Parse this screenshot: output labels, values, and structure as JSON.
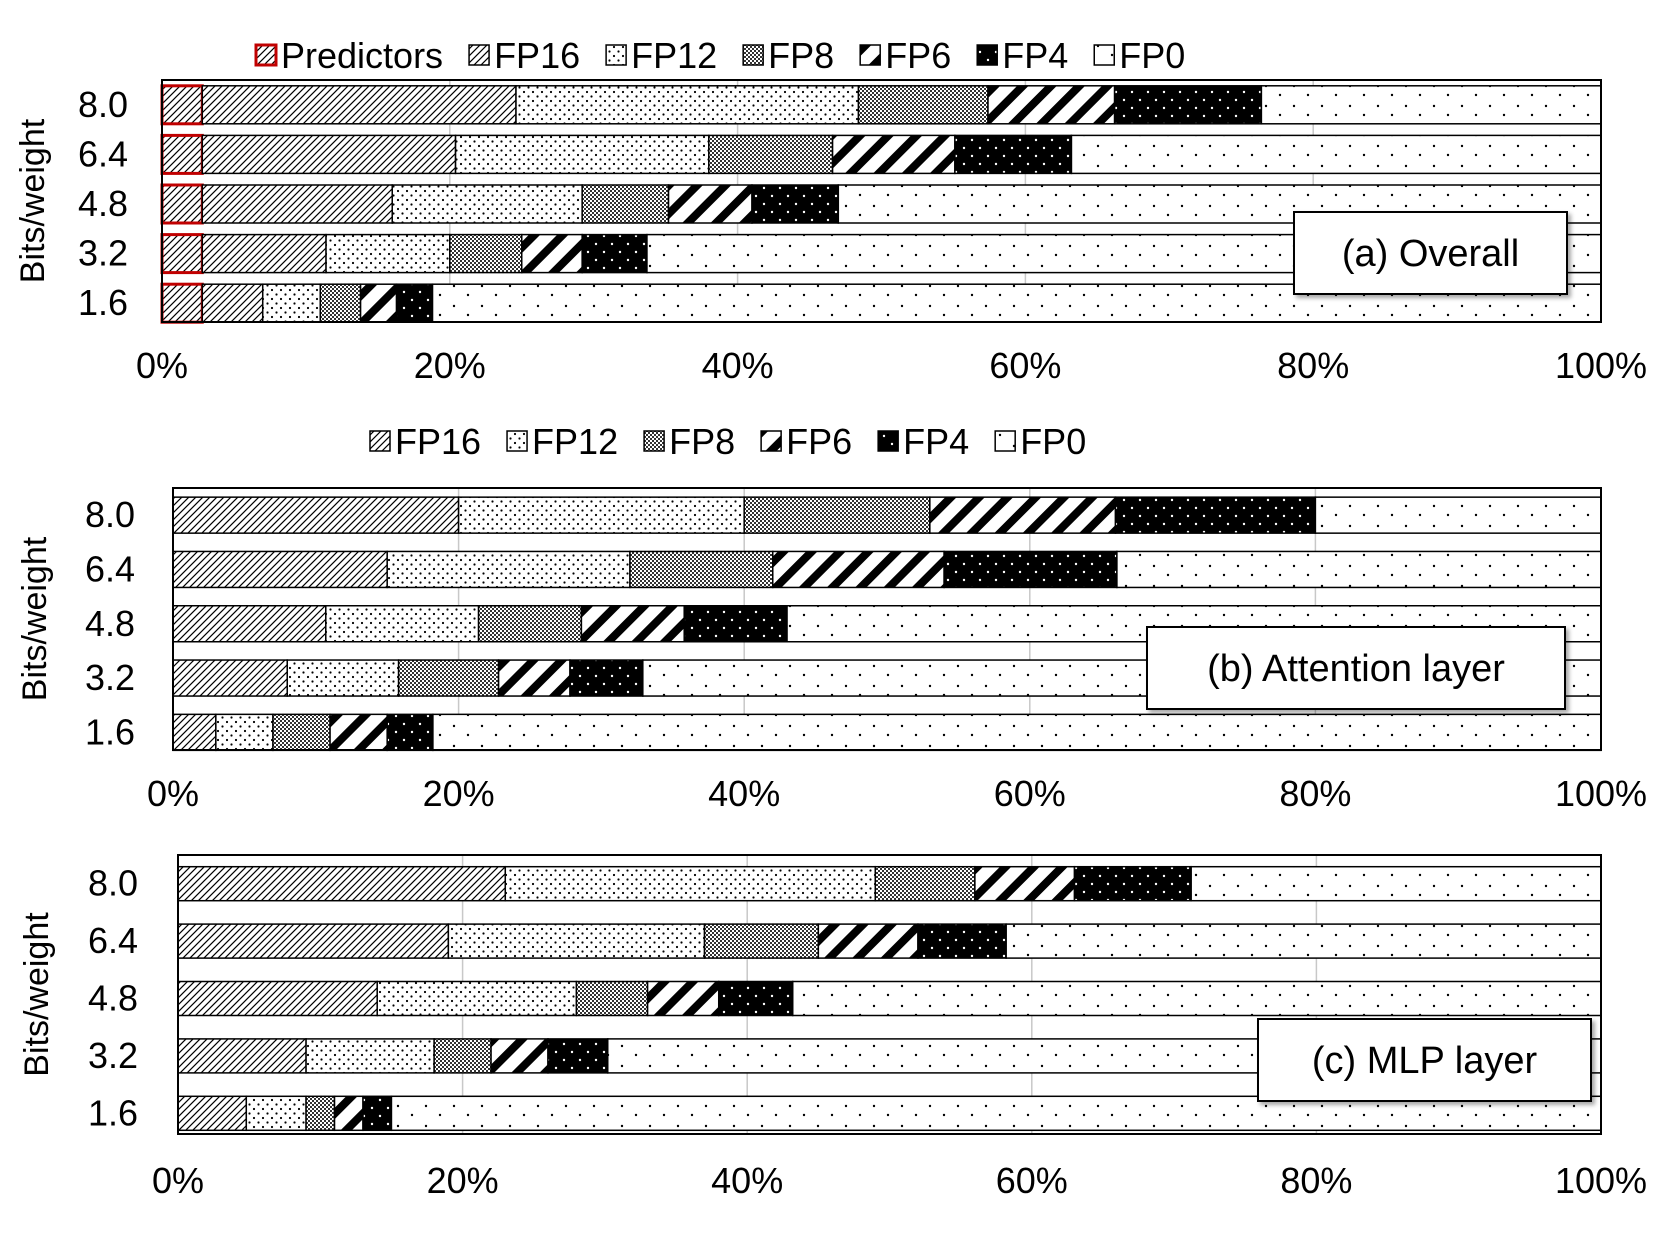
{
  "chart_data": [
    {
      "type": "stacked-bar-horizontal",
      "panel_label": "(a) Overall",
      "ylabel": "Bits/weight",
      "xlim": [
        0,
        100
      ],
      "x_tick_labels": [
        "0%",
        "20%",
        "40%",
        "60%",
        "80%",
        "100%"
      ],
      "categories": [
        "8.0",
        "6.4",
        "4.8",
        "3.2",
        "1.6"
      ],
      "legend_labels": [
        "Predictors",
        "FP16",
        "FP12",
        "FP8",
        "FP6",
        "FP4",
        "FP0"
      ],
      "series": [
        {
          "name": "Predictors",
          "pattern": "predictors",
          "values": [
            2.8,
            2.8,
            2.8,
            2.8,
            2.8
          ]
        },
        {
          "name": "FP16",
          "pattern": "fp16",
          "values": [
            21.8,
            17.6,
            13.2,
            8.6,
            4.2
          ]
        },
        {
          "name": "FP12",
          "pattern": "fp12",
          "values": [
            23.8,
            17.6,
            13.2,
            8.6,
            4.0
          ]
        },
        {
          "name": "FP8",
          "pattern": "fp8",
          "values": [
            9.0,
            8.6,
            6.0,
            5.0,
            2.8
          ]
        },
        {
          "name": "FP6",
          "pattern": "fp6",
          "values": [
            8.8,
            8.5,
            5.8,
            4.2,
            2.5
          ]
        },
        {
          "name": "FP4",
          "pattern": "fp4",
          "values": [
            10.2,
            8.1,
            6.0,
            4.5,
            2.5
          ]
        },
        {
          "name": "FP0",
          "pattern": "fp0",
          "values": [
            23.6,
            36.8,
            53.0,
            66.3,
            81.2
          ]
        }
      ]
    },
    {
      "type": "stacked-bar-horizontal",
      "panel_label": "(b) Attention layer",
      "ylabel": "Bits/weight",
      "xlim": [
        0,
        100
      ],
      "x_tick_labels": [
        "0%",
        "20%",
        "40%",
        "60%",
        "80%",
        "100%"
      ],
      "categories": [
        "8.0",
        "6.4",
        "4.8",
        "3.2",
        "1.6"
      ],
      "legend_labels": [
        "FP16",
        "FP12",
        "FP8",
        "FP6",
        "FP4",
        "FP0"
      ],
      "series": [
        {
          "name": "FP16",
          "pattern": "fp16",
          "values": [
            20.0,
            15.0,
            10.7,
            8.0,
            3.0
          ]
        },
        {
          "name": "FP12",
          "pattern": "fp12",
          "values": [
            20.0,
            17.0,
            10.7,
            7.8,
            4.0
          ]
        },
        {
          "name": "FP8",
          "pattern": "fp8",
          "values": [
            13.0,
            10.0,
            7.2,
            7.0,
            4.0
          ]
        },
        {
          "name": "FP6",
          "pattern": "fp6",
          "values": [
            13.0,
            12.0,
            7.2,
            5.0,
            4.0
          ]
        },
        {
          "name": "FP4",
          "pattern": "fp4",
          "values": [
            14.0,
            12.1,
            7.2,
            5.1,
            3.2
          ]
        },
        {
          "name": "FP0",
          "pattern": "fp0",
          "values": [
            20.0,
            33.9,
            57.0,
            67.1,
            81.8
          ]
        }
      ]
    },
    {
      "type": "stacked-bar-horizontal",
      "panel_label": "(c) MLP layer",
      "ylabel": "Bits/weight",
      "xlim": [
        0,
        100
      ],
      "x_tick_labels": [
        "0%",
        "20%",
        "40%",
        "60%",
        "80%",
        "100%"
      ],
      "categories": [
        "8.0",
        "6.4",
        "4.8",
        "3.2",
        "1.6"
      ],
      "legend_labels": [],
      "series": [
        {
          "name": "FP16",
          "pattern": "fp16",
          "values": [
            23.0,
            19.0,
            14.0,
            9.0,
            4.8
          ]
        },
        {
          "name": "FP12",
          "pattern": "fp12",
          "values": [
            26.0,
            18.0,
            14.0,
            9.0,
            4.2
          ]
        },
        {
          "name": "FP8",
          "pattern": "fp8",
          "values": [
            7.0,
            8.0,
            5.0,
            4.0,
            2.0
          ]
        },
        {
          "name": "FP6",
          "pattern": "fp6",
          "values": [
            7.0,
            7.0,
            5.0,
            4.0,
            2.0
          ]
        },
        {
          "name": "FP4",
          "pattern": "fp4",
          "values": [
            8.2,
            6.2,
            5.2,
            4.2,
            2.0
          ]
        },
        {
          "name": "FP0",
          "pattern": "fp0",
          "values": [
            28.8,
            41.8,
            56.8,
            69.8,
            85.0
          ]
        }
      ]
    }
  ]
}
